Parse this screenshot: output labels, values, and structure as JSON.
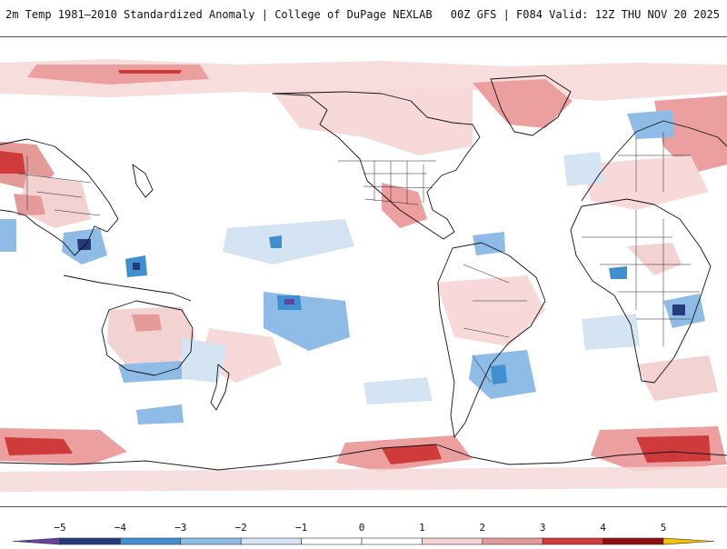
{
  "header": {
    "left": "2m Temp 1981–2010 Standardized Anomaly | College of DuPage NEXLAB",
    "right": "00Z GFS | F084 Valid: 12Z THU NOV 20 2025"
  },
  "colorbar": {
    "ticks": [
      "−5",
      "−4",
      "−3",
      "−2",
      "−1",
      "0",
      "1",
      "2",
      "3",
      "4",
      "5"
    ],
    "colors": [
      "#6a3fa0",
      "#243a7a",
      "#3f8fd1",
      "#8fbce6",
      "#d5e4f3",
      "#ffffff",
      "#ffffff",
      "#f3d2d2",
      "#e59a9a",
      "#cf3a3a",
      "#8e1010",
      "#f2c200"
    ]
  },
  "palette": {
    "warm_light": "#f7d9d9",
    "warm_mid": "#ec9f9f",
    "warm_strong": "#cf3a3a",
    "warm_deep": "#9b1414",
    "cool_light": "#d5e4f3",
    "cool_mid": "#8fbce6",
    "cool_strong": "#3f8fd1",
    "cool_deep": "#243a7a",
    "coast": "#111111"
  }
}
